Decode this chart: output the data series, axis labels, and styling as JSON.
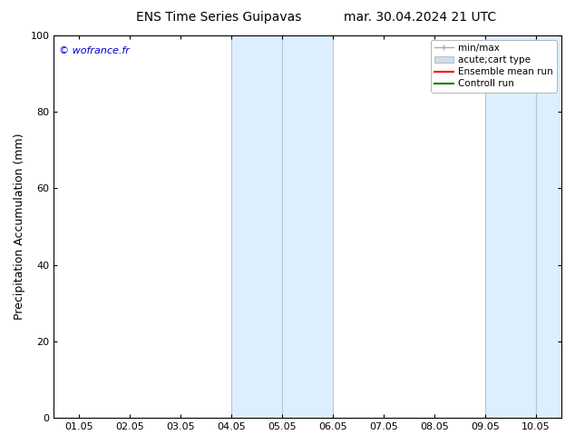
{
  "title_left": "ENS Time Series Guipavas",
  "title_right": "mar. 30.04.2024 21 UTC",
  "ylabel": "Precipitation Accumulation (mm)",
  "watermark": "© wofrance.fr",
  "watermark_color": "#0000cc",
  "ylim": [
    0,
    100
  ],
  "yticks": [
    0,
    20,
    40,
    60,
    80,
    100
  ],
  "x_tick_labels": [
    "01.05",
    "02.05",
    "03.05",
    "04.05",
    "05.05",
    "06.05",
    "07.05",
    "08.05",
    "09.05",
    "10.05"
  ],
  "x_num_ticks": 10,
  "shaded_regions": [
    {
      "xmin": 3.0,
      "xmax": 5.0,
      "color": "#ddeeff"
    },
    {
      "xmin": 8.0,
      "xmax": 9.5,
      "color": "#ddeeff"
    }
  ],
  "thin_border_lines": [
    {
      "x": 3.0,
      "color": "#b0c8e0"
    },
    {
      "x": 4.0,
      "color": "#b0c8e0"
    },
    {
      "x": 5.0,
      "color": "#b0c8e0"
    },
    {
      "x": 8.0,
      "color": "#b0c8e0"
    },
    {
      "x": 9.0,
      "color": "#b0c8e0"
    },
    {
      "x": 9.5,
      "color": "#b0c8e0"
    }
  ],
  "bg_color": "#ffffff",
  "legend_items": [
    {
      "label": "min/max",
      "color": "#aaaaaa",
      "lw": 1,
      "style": "line_with_caps"
    },
    {
      "label": "acute;cart type",
      "color": "#ccdded",
      "lw": 6,
      "style": "filled"
    },
    {
      "label": "Ensemble mean run",
      "color": "#ff0000",
      "lw": 1.5,
      "style": "line"
    },
    {
      "label": "Controll run",
      "color": "#008000",
      "lw": 1.5,
      "style": "line"
    }
  ],
  "font_size_title": 10,
  "font_size_axis": 9,
  "font_size_tick": 8,
  "font_size_watermark": 8,
  "font_size_legend": 7.5
}
